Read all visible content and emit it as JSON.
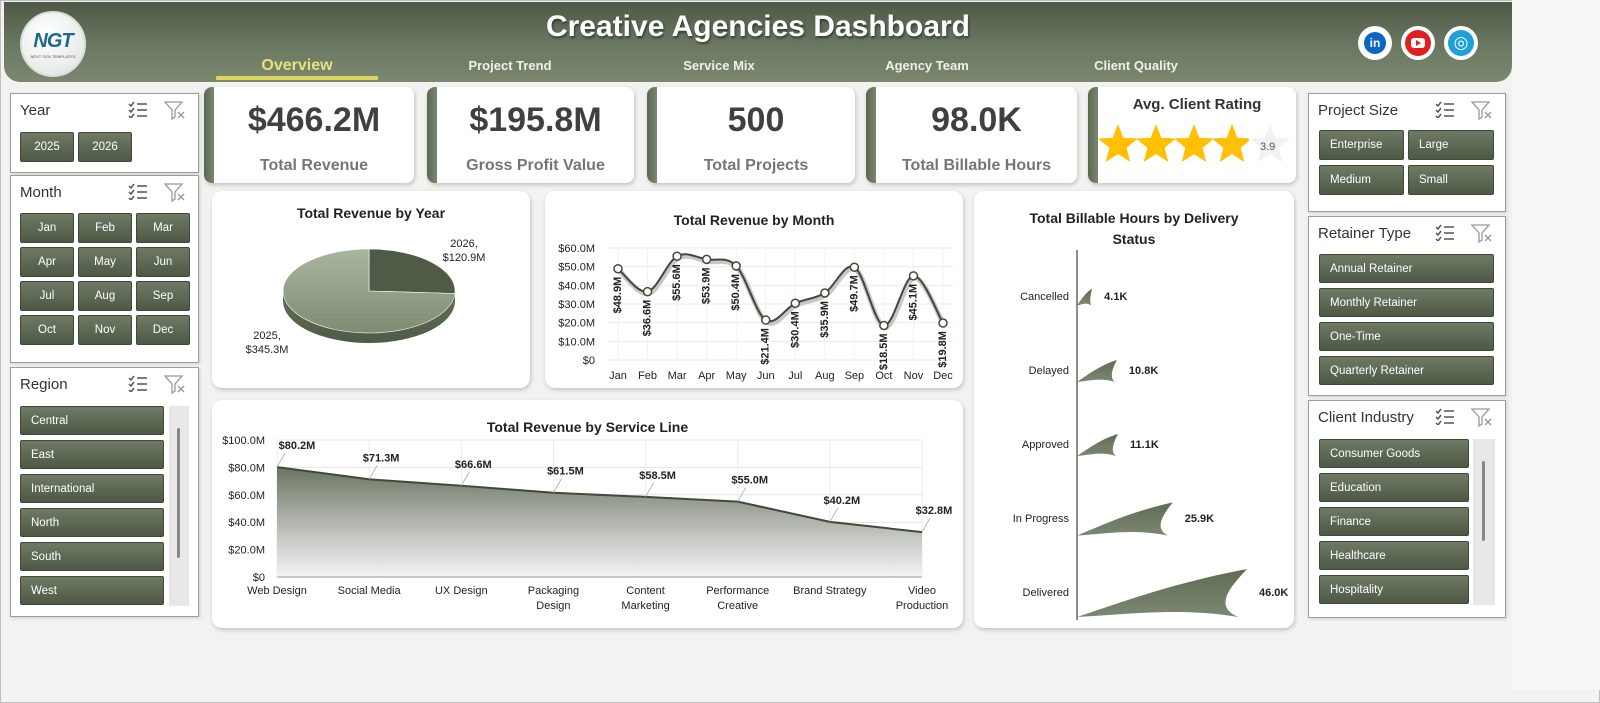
{
  "header": {
    "title": "Creative Agencies Dashboard",
    "logo_text": "NGT",
    "logo_subtext": "NEXT GEN TEMPLATES",
    "tabs": [
      "Overview",
      "Project Trend",
      "Service Mix",
      "Agency Team",
      "Client Quality"
    ],
    "active_tab": "Overview",
    "social": [
      "linkedin-icon",
      "youtube-icon",
      "website-icon"
    ]
  },
  "slicers": {
    "year": {
      "title": "Year",
      "items": [
        "2025",
        "2026"
      ]
    },
    "month": {
      "title": "Month",
      "items": [
        "Jan",
        "Feb",
        "Mar",
        "Apr",
        "May",
        "Jun",
        "Jul",
        "Aug",
        "Sep",
        "Oct",
        "Nov",
        "Dec"
      ]
    },
    "region": {
      "title": "Region",
      "items": [
        "Central",
        "East",
        "International",
        "North",
        "South",
        "West"
      ]
    },
    "project_size": {
      "title": "Project Size",
      "items": [
        "Enterprise",
        "Large",
        "Medium",
        "Small"
      ]
    },
    "retainer_type": {
      "title": "Retainer Type",
      "items": [
        "Annual Retainer",
        "Monthly Retainer",
        "One-Time",
        "Quarterly Retainer"
      ]
    },
    "client_industry": {
      "title": "Client Industry",
      "items": [
        "Consumer Goods",
        "Education",
        "Finance",
        "Healthcare",
        "Hospitality"
      ]
    }
  },
  "kpis": [
    {
      "value": "$466.2M",
      "label": "Total Revenue"
    },
    {
      "value": "$195.8M",
      "label": "Gross Profit Value"
    },
    {
      "value": "500",
      "label": "Total Projects"
    },
    {
      "value": "98.0K",
      "label": "Total Billable Hours"
    }
  ],
  "rating": {
    "title": "Avg. Client Rating",
    "value": "3.9",
    "score": 3.9,
    "max": 5
  },
  "colors": {
    "accent": "#5b6852",
    "accent_light": "#7b876f",
    "star": "#ffc000",
    "tab_active": "#e8e27a"
  },
  "chart_data": [
    {
      "type": "pie",
      "title": "Total Revenue by Year",
      "categories": [
        "2025",
        "2026"
      ],
      "values": [
        345.3,
        120.9
      ],
      "labels": [
        "2025,\n$345.3M",
        "2026,\n$120.9M"
      ]
    },
    {
      "type": "line",
      "title": "Total Revenue  by Month",
      "categories": [
        "Jan",
        "Feb",
        "Mar",
        "Apr",
        "May",
        "Jun",
        "Jul",
        "Aug",
        "Sep",
        "Oct",
        "Nov",
        "Dec"
      ],
      "values": [
        48.9,
        36.6,
        55.6,
        53.9,
        50.4,
        21.4,
        30.4,
        35.9,
        49.7,
        18.5,
        45.1,
        19.8
      ],
      "data_labels": [
        "$48.9M",
        "$36.6M",
        "$55.6M",
        "$53.9M",
        "$50.4M",
        "$21.4M",
        "$30.4M",
        "$35.9M",
        "$49.7M",
        "$18.5M",
        "$45.1M",
        "$19.8M"
      ],
      "y_ticks": [
        "$0",
        "$10.0M",
        "$20.0M",
        "$30.0M",
        "$40.0M",
        "$50.0M",
        "$60.0M"
      ],
      "ylim": [
        0,
        60
      ]
    },
    {
      "type": "area",
      "title": "Total Revenue  by Service Line",
      "categories": [
        "Web Design",
        "Social Media",
        "UX Design",
        "Packaging Design",
        "Content Marketing",
        "Performance Creative",
        "Brand Strategy",
        "Video Production"
      ],
      "category_lines": [
        [
          "Web Design"
        ],
        [
          "Social Media"
        ],
        [
          "UX Design"
        ],
        [
          "Packaging",
          "Design"
        ],
        [
          "Content",
          "Marketing"
        ],
        [
          "Performance",
          "Creative"
        ],
        [
          "Brand Strategy"
        ],
        [
          "Video",
          "Production"
        ]
      ],
      "values": [
        80.2,
        71.3,
        66.6,
        61.5,
        58.5,
        55.0,
        40.2,
        32.8
      ],
      "data_labels": [
        "$80.2M",
        "$71.3M",
        "$66.6M",
        "$61.5M",
        "$58.5M",
        "$55.0M",
        "$40.2M",
        "$32.8M"
      ],
      "y_ticks": [
        "$0",
        "$20.0M",
        "$40.0M",
        "$60.0M",
        "$80.0M",
        "$100.0M"
      ],
      "ylim": [
        0,
        100
      ]
    },
    {
      "type": "bar",
      "title": "Total Billable Hours by Delivery Status",
      "title_lines": [
        "Total Billable Hours by Delivery",
        "Status"
      ],
      "categories": [
        "Cancelled",
        "Delayed",
        "Approved",
        "In Progress",
        "Delivered"
      ],
      "values": [
        4.1,
        10.8,
        11.1,
        25.9,
        46.0
      ],
      "data_labels": [
        "4.1K",
        "10.8K",
        "11.1K",
        "25.9K",
        "46.0K"
      ],
      "unit": "K"
    }
  ]
}
